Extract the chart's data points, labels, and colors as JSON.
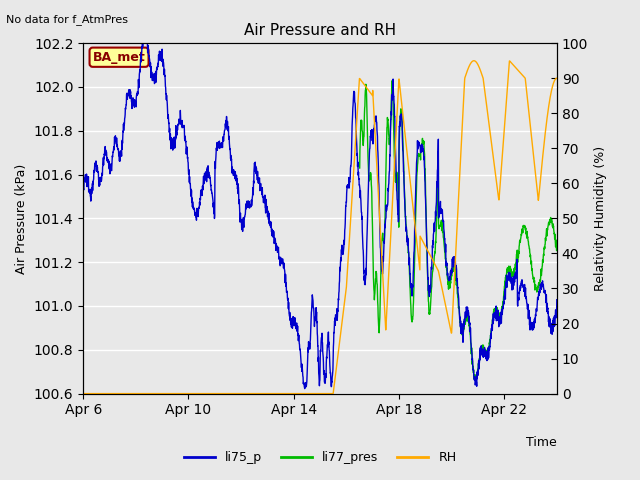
{
  "title": "Air Pressure and RH",
  "top_left_text": "No data for f_AtmPres",
  "xlabel": "Time",
  "ylabel_left": "Air Pressure (kPa)",
  "ylabel_right": "Relativity Humidity (%)",
  "ylim_left": [
    100.6,
    102.2
  ],
  "ylim_right": [
    0,
    100
  ],
  "yticks_left": [
    100.6,
    100.8,
    101.0,
    101.2,
    101.4,
    101.6,
    101.8,
    102.0,
    102.2
  ],
  "yticks_right": [
    0,
    10,
    20,
    30,
    40,
    50,
    60,
    70,
    80,
    90,
    100
  ],
  "background_color": "#e8e8e8",
  "grid_color": "#ffffff",
  "line_colors": {
    "li75_p": "#0000cc",
    "li77_pres": "#00bb00",
    "RH": "#ffaa00"
  },
  "legend_labels": [
    "li75_p",
    "li77_pres",
    "RH"
  ],
  "box_label": "BA_met",
  "box_facecolor": "#ffff99",
  "box_edgecolor": "#990000",
  "xtick_labels": [
    "Apr 6",
    "Apr 10",
    "Apr 14",
    "Apr 18",
    "Apr 22"
  ],
  "xtick_positions": [
    6,
    10,
    14,
    18,
    22
  ]
}
